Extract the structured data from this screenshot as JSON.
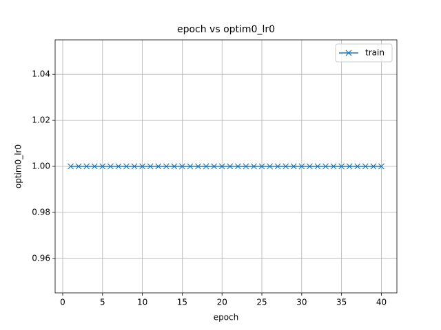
{
  "chart_data": {
    "type": "line",
    "title": "epoch vs optim0_lr0",
    "x_label": "epoch",
    "y_label": "optim0_lr0",
    "x": [
      1,
      2,
      3,
      4,
      5,
      6,
      7,
      8,
      9,
      10,
      11,
      12,
      13,
      14,
      15,
      16,
      17,
      18,
      19,
      20,
      21,
      22,
      23,
      24,
      25,
      26,
      27,
      28,
      29,
      30,
      31,
      32,
      33,
      34,
      35,
      36,
      37,
      38,
      39,
      40
    ],
    "series": [
      {
        "name": "train",
        "color": "#1f77b4",
        "marker": "x",
        "values": [
          1,
          1,
          1,
          1,
          1,
          1,
          1,
          1,
          1,
          1,
          1,
          1,
          1,
          1,
          1,
          1,
          1,
          1,
          1,
          1,
          1,
          1,
          1,
          1,
          1,
          1,
          1,
          1,
          1,
          1,
          1,
          1,
          1,
          1,
          1,
          1,
          1,
          1,
          1,
          1
        ]
      }
    ],
    "xlim": [
      -0.95,
      41.95
    ],
    "xticks": [
      0,
      5,
      10,
      15,
      20,
      25,
      30,
      35,
      40
    ],
    "ylim": [
      0.945,
      1.055
    ],
    "yticks": [
      0.96,
      0.98,
      {
        "value": 1.0,
        "label": "1.00"
      },
      1.02,
      1.04
    ],
    "grid": true,
    "legend": "upper right"
  }
}
